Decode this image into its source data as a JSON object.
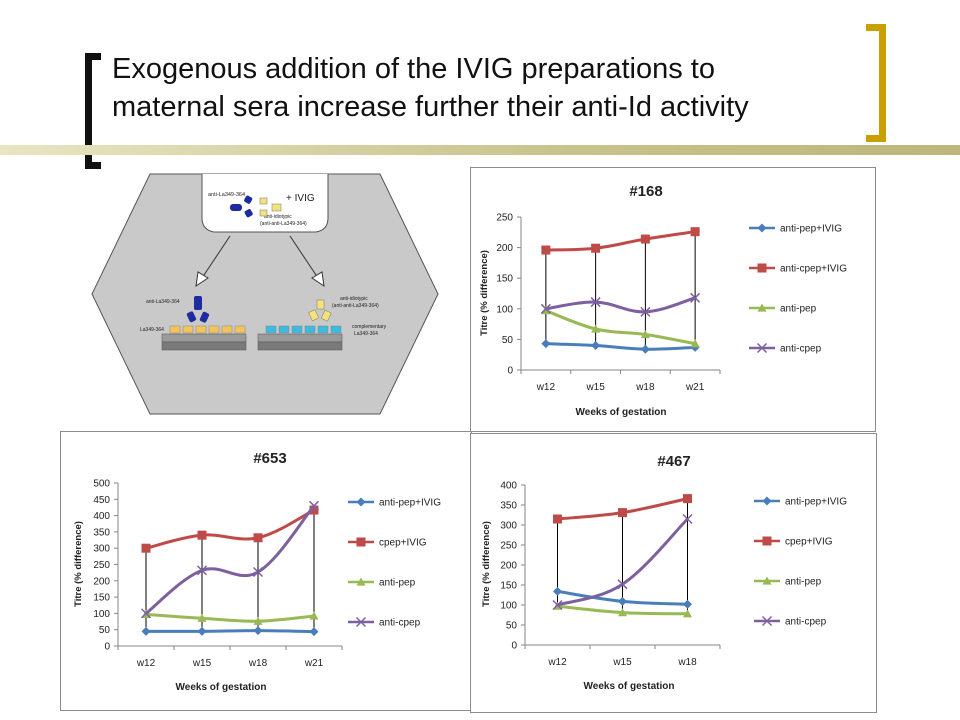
{
  "slide": {
    "title_line1": "Exogenous addition of the IVIG preparations to",
    "title_line2": "maternal sera increase further their anti-Id activity",
    "colors": {
      "bracket_left": "#111111",
      "bracket_right": "#c9a000",
      "rule": "#c8c28c"
    }
  },
  "diagram": {
    "top_antibody_label": "anti-La349-364",
    "ivig_label": "+ IVIG",
    "antiid_label_line1": "anti-idiotypic",
    "antiid_label_line2": "(anti-anti-La349-364)",
    "left_antibody_label": "anti-La349-364",
    "left_plate_label": "La349-364",
    "right_antiid_line1": "anti-idiotypic",
    "right_antiid_line2": "(anti-anti-La349-364)",
    "right_plate_line1": "complementary",
    "right_plate_line2": "La349-364"
  },
  "chart_data": [
    {
      "id": "168",
      "type": "line",
      "title": "#168",
      "xlabel": "Weeks of gestation",
      "ylabel": "Titre (% difference)",
      "categories": [
        "w12",
        "w15",
        "w18",
        "w21"
      ],
      "ylim": [
        0,
        250
      ],
      "yticks": [
        0,
        50,
        100,
        150,
        200,
        250
      ],
      "grid": false,
      "drop_lines": true,
      "legend": "right",
      "series": [
        {
          "name": "anti-pep+IVIG",
          "color": "#4a7ebb",
          "marker": "diamond",
          "values": [
            43,
            40,
            34,
            37
          ]
        },
        {
          "name": "anti-cpep+IVIG",
          "color": "#be4b48",
          "marker": "square",
          "values": [
            196,
            199,
            214,
            226
          ]
        },
        {
          "name": "anti-pep",
          "color": "#98b954",
          "marker": "triangle",
          "values": [
            97,
            67,
            58,
            43
          ]
        },
        {
          "name": "anti-cpep",
          "color": "#7d60a0",
          "marker": "x",
          "values": [
            100,
            111,
            95,
            118
          ]
        }
      ]
    },
    {
      "id": "653",
      "type": "line",
      "title": "#653",
      "xlabel": "Weeks of gestation",
      "ylabel": "Titre (% difference)",
      "categories": [
        "w12",
        "w15",
        "w18",
        "w21"
      ],
      "ylim": [
        0,
        500
      ],
      "yticks": [
        0,
        50,
        100,
        150,
        200,
        250,
        300,
        350,
        400,
        450,
        500
      ],
      "grid": false,
      "drop_lines": true,
      "legend": "right",
      "series": [
        {
          "name": "anti-pep+IVIG",
          "color": "#4a7ebb",
          "marker": "diamond",
          "values": [
            45,
            45,
            47,
            44
          ]
        },
        {
          "name": "cpep+IVIG",
          "color": "#be4b48",
          "marker": "square",
          "values": [
            300,
            340,
            332,
            417
          ]
        },
        {
          "name": "anti-pep",
          "color": "#98b954",
          "marker": "triangle",
          "values": [
            97,
            85,
            76,
            92
          ]
        },
        {
          "name": "anti-cpep",
          "color": "#7d60a0",
          "marker": "x",
          "values": [
            100,
            232,
            227,
            430
          ]
        }
      ]
    },
    {
      "id": "467",
      "type": "line",
      "title": "#467",
      "xlabel": "Weeks of gestation",
      "ylabel": "Titre (% difference)",
      "categories": [
        "w12",
        "w15",
        "w18"
      ],
      "ylim": [
        0,
        400
      ],
      "yticks": [
        0,
        50,
        100,
        150,
        200,
        250,
        300,
        350,
        400
      ],
      "grid": false,
      "drop_lines": true,
      "legend": "right",
      "series": [
        {
          "name": "anti-pep+IVIG",
          "color": "#4a7ebb",
          "marker": "diamond",
          "values": [
            134,
            109,
            102
          ]
        },
        {
          "name": "cpep+IVIG",
          "color": "#be4b48",
          "marker": "square",
          "values": [
            315,
            331,
            366
          ]
        },
        {
          "name": "anti-pep",
          "color": "#98b954",
          "marker": "triangle",
          "values": [
            97,
            81,
            78
          ]
        },
        {
          "name": "anti-cpep",
          "color": "#7d60a0",
          "marker": "x",
          "values": [
            100,
            152,
            315
          ]
        }
      ]
    }
  ]
}
